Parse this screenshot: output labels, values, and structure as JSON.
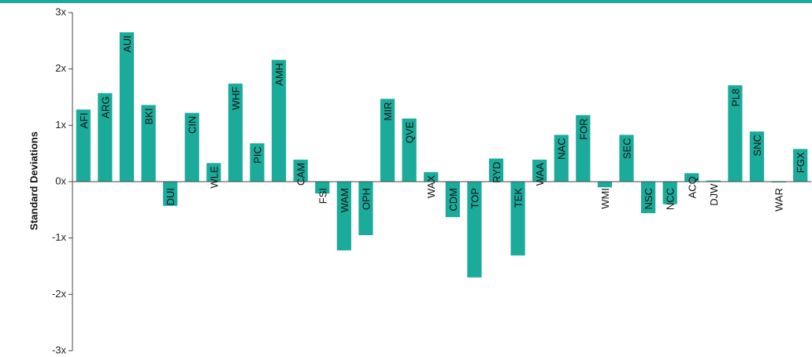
{
  "colors": {
    "accent": "#1aab9b",
    "bar": "#1aab9b",
    "axis": "#444444",
    "text": "#111111"
  },
  "chart_data": {
    "type": "bar",
    "title": "",
    "xlabel": "",
    "ylabel": "Standard Deviations",
    "ylim": [
      -3,
      3
    ],
    "yticks": [
      3,
      2,
      1,
      0,
      -1,
      -2,
      -3
    ],
    "ytick_labels": [
      "3x",
      "2x",
      "1x",
      "0x",
      "-1x",
      "-2x",
      "-3x"
    ],
    "grid": false,
    "legend": "none",
    "categories": [
      "AFI",
      "ARG",
      "AUI",
      "BKI",
      "DUI",
      "CIN",
      "WLE",
      "WHF",
      "PIC",
      "AMH",
      "CAM",
      "FSI",
      "WAM",
      "OPH",
      "MIR",
      "QVE",
      "WAX",
      "CDM",
      "TOP",
      "RYD",
      "TEK",
      "WAA",
      "NAC",
      "FOR",
      "WMI",
      "SEC",
      "NSC",
      "NCC",
      "ACQ",
      "DJW",
      "PL8",
      "SNC",
      "WAR",
      "FGX"
    ],
    "values": [
      1.28,
      1.57,
      2.65,
      1.36,
      -0.43,
      1.22,
      0.33,
      1.74,
      0.68,
      2.16,
      0.39,
      -0.21,
      -1.22,
      -0.95,
      1.47,
      1.12,
      0.17,
      -0.63,
      -1.7,
      0.41,
      -1.31,
      0.39,
      0.83,
      1.18,
      -0.1,
      0.83,
      -0.56,
      -0.4,
      0.15,
      0.02,
      1.71,
      0.89,
      0.0,
      0.58
    ]
  }
}
